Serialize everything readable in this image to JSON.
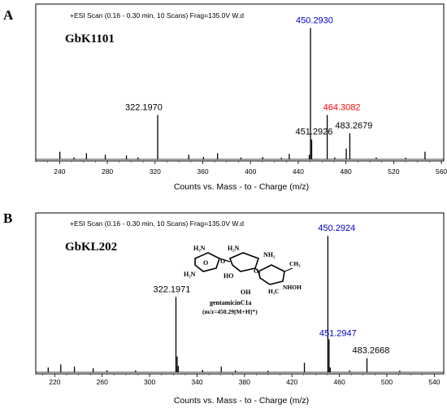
{
  "chart_data": [
    {
      "type": "bar",
      "panel": "A",
      "sample": "GbK1101",
      "scan_info": "+ESI Scan (0.16 - 0.30 min, 10 Scans) Frag=135.0V W.d",
      "xlabel": "Counts vs. Mass - to - Charge (m/z)",
      "xlim": [
        220,
        562
      ],
      "ylim": [
        0,
        1
      ],
      "xticks": [
        "240",
        "280",
        "320",
        "360",
        "400",
        "440",
        "480",
        "520",
        "560"
      ],
      "peaks": [
        {
          "mz": 450.293,
          "intensity": 0.86,
          "label": "450.2930",
          "color": "#0000cc"
        },
        {
          "mz": 451.2926,
          "intensity": 0.13,
          "label": "451.2926",
          "color": "#000000"
        },
        {
          "mz": 464.3082,
          "intensity": 0.29,
          "label": "464.3082",
          "color": "#ff0000"
        },
        {
          "mz": 483.2679,
          "intensity": 0.17,
          "label": "483.2679",
          "color": "#000000"
        },
        {
          "mz": 322.197,
          "intensity": 0.29,
          "label": "322.1970",
          "color": "#000000"
        },
        {
          "mz": 480.3,
          "intensity": 0.07
        },
        {
          "mz": 240.2,
          "intensity": 0.05
        },
        {
          "mz": 262.5,
          "intensity": 0.04
        },
        {
          "mz": 278.3,
          "intensity": 0.03
        },
        {
          "mz": 296.0,
          "intensity": 0.025
        },
        {
          "mz": 348.3,
          "intensity": 0.03
        },
        {
          "mz": 372.4,
          "intensity": 0.04
        },
        {
          "mz": 360.6,
          "intensity": 0.015
        },
        {
          "mz": 410.2,
          "intensity": 0.015
        },
        {
          "mz": 432.5,
          "intensity": 0.035
        },
        {
          "mz": 449.3,
          "intensity": 0.03
        },
        {
          "mz": 546.3,
          "intensity": 0.05
        },
        {
          "mz": 252.1,
          "intensity": 0.012
        },
        {
          "mz": 305.7,
          "intensity": 0.012
        },
        {
          "mz": 392.0,
          "intensity": 0.012
        },
        {
          "mz": 425.9,
          "intensity": 0.01
        },
        {
          "mz": 470.6,
          "intensity": 0.012
        },
        {
          "mz": 505.4,
          "intensity": 0.012
        },
        {
          "mz": 530.1,
          "intensity": 0.01
        }
      ]
    },
    {
      "type": "bar",
      "panel": "B",
      "sample": "GbKL202",
      "scan_info": "+ESI Scan (0.16 - 0.30 min, 10 Scans) Frag=135.0V W.d",
      "xlabel": "Counts vs. Mass - to - Charge (m/z)",
      "xlim": [
        204,
        548
      ],
      "ylim": [
        0,
        1
      ],
      "xticks": [
        "220",
        "260",
        "300",
        "340",
        "380",
        "420",
        "460",
        "500",
        "540"
      ],
      "peaks": [
        {
          "mz": 450.2924,
          "intensity": 0.87,
          "label": "450.2924",
          "color": "#0000cc"
        },
        {
          "mz": 451.2947,
          "intensity": 0.21,
          "label": "451.2947",
          "color": "#0000cc"
        },
        {
          "mz": 322.1971,
          "intensity": 0.48,
          "label": "322.1971",
          "color": "#000000"
        },
        {
          "mz": 483.2668,
          "intensity": 0.09,
          "label": "483.2668",
          "color": "#000000"
        },
        {
          "mz": 323.2,
          "intensity": 0.1
        },
        {
          "mz": 324.2,
          "intensity": 0.04
        },
        {
          "mz": 452.3,
          "intensity": 0.03
        },
        {
          "mz": 225.1,
          "intensity": 0.05
        },
        {
          "mz": 236.6,
          "intensity": 0.035
        },
        {
          "mz": 214.5,
          "intensity": 0.03
        },
        {
          "mz": 252.4,
          "intensity": 0.025
        },
        {
          "mz": 360.4,
          "intensity": 0.035
        },
        {
          "mz": 430.5,
          "intensity": 0.06
        },
        {
          "mz": 264.0,
          "intensity": 0.012
        },
        {
          "mz": 288.2,
          "intensity": 0.012
        },
        {
          "mz": 344.6,
          "intensity": 0.015
        },
        {
          "mz": 372.4,
          "intensity": 0.012
        },
        {
          "mz": 399.7,
          "intensity": 0.01
        },
        {
          "mz": 468.7,
          "intensity": 0.012
        },
        {
          "mz": 510.9,
          "intensity": 0.01
        }
      ]
    }
  ],
  "structure": {
    "h2n_top": "H₂N",
    "h2n_left": "H₂N",
    "h2n_mid": "H₂N",
    "nh2": "NH₂",
    "o1": "O",
    "o2": "O",
    "o3": "O",
    "ho": "HO",
    "ch3": "CH₃",
    "h3c": "H₃C",
    "oh": "OH",
    "nhoh": "NHOH",
    "name": "gentamicinC1a",
    "formula": "(m/z=450.29[M+H]⁺)"
  }
}
